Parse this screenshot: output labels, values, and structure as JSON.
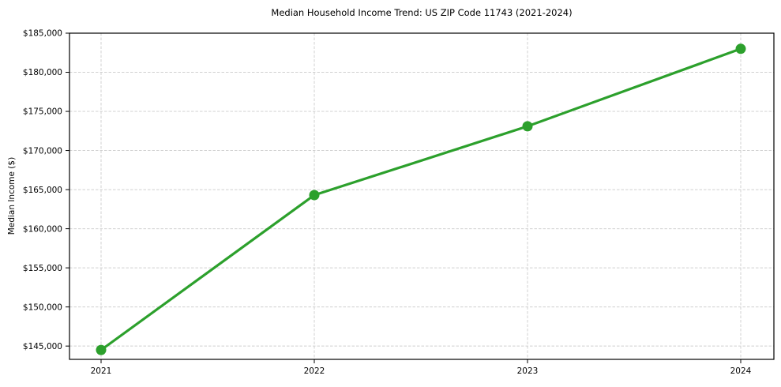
{
  "chart_data": {
    "type": "line",
    "title": "Median Household Income Trend: US ZIP Code 11743 (2021-2024)",
    "xlabel": "",
    "ylabel": "Median Income ($)",
    "x": [
      "2021",
      "2022",
      "2023",
      "2024"
    ],
    "series": [
      {
        "name": "Median Income ($)",
        "values": [
          144500,
          164300,
          173100,
          183000
        ],
        "color": "#2ca02c",
        "marker": "circle"
      }
    ],
    "ylim": [
      143300,
      185000
    ],
    "yticks": [
      145000,
      150000,
      155000,
      160000,
      165000,
      170000,
      175000,
      180000,
      185000
    ],
    "ytick_labels": [
      "$145,000",
      "$150,000",
      "$155,000",
      "$160,000",
      "$165,000",
      "$170,000",
      "$175,000",
      "$180,000",
      "$185,000"
    ],
    "xtick_labels": [
      "2021",
      "2022",
      "2023",
      "2024"
    ],
    "grid": {
      "show": true,
      "style": "dashed",
      "color": "#d0d0d0"
    },
    "legend": "none",
    "colors": {
      "background": "#ffffff",
      "spine": "#000000",
      "text": "#000000",
      "line": "#2ca02c"
    }
  }
}
